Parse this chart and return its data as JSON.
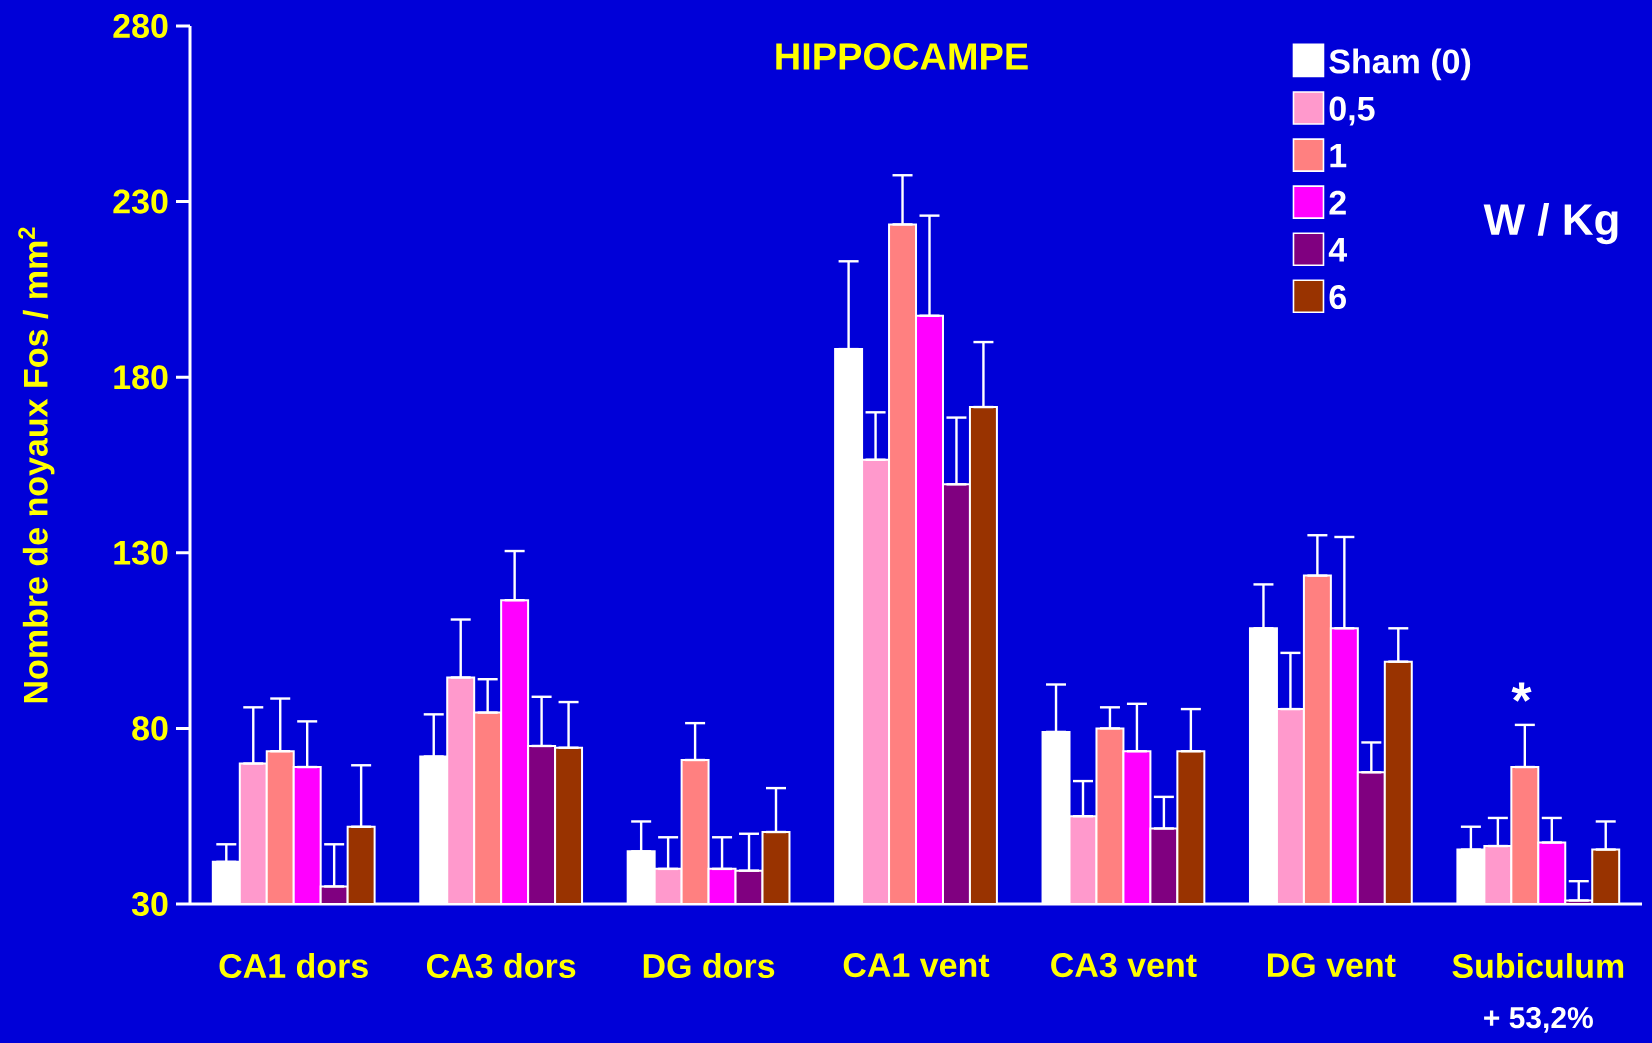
{
  "chart_data": {
    "type": "bar",
    "title": "HIPPOCAMPE",
    "ylabel": "Nombre de noyaux Fos / mm$^{2}$",
    "categories": [
      "CA1 dors",
      "CA3 dors",
      "DG dors",
      "CA1 vent",
      "CA3 vent",
      "DG vent",
      "Subiculum"
    ],
    "series": [
      {
        "name": "Sham (0)",
        "color": "#ffffff",
        "values": [
          42,
          72,
          45,
          188,
          79,
          108.5,
          45.5
        ],
        "errors": [
          [
            42,
            47
          ],
          [
            72,
            84
          ],
          [
            45,
            53.5
          ],
          [
            188,
            213
          ],
          [
            79,
            92.5
          ],
          [
            108.5,
            121
          ],
          [
            45.5,
            52
          ]
        ]
      },
      {
        "name": "0,5",
        "color": "#ff99cc",
        "values": [
          70,
          94.5,
          40,
          156.5,
          55,
          85.5,
          46.5
        ],
        "errors": [
          [
            70,
            86
          ],
          [
            94.5,
            111
          ],
          [
            40,
            49
          ],
          [
            156.5,
            170
          ],
          [
            55,
            65
          ],
          [
            85.5,
            101.5
          ],
          [
            46.5,
            54.5
          ]
        ]
      },
      {
        "name": "1",
        "color": "#ff8080",
        "values": [
          73.5,
          84.5,
          71,
          223.5,
          80,
          123.5,
          69
        ],
        "errors": [
          [
            73.5,
            88.5
          ],
          [
            84.5,
            94
          ],
          [
            71,
            81.5
          ],
          [
            223.5,
            237.5
          ],
          [
            80,
            86
          ],
          [
            123.5,
            135
          ],
          [
            69,
            81
          ]
        ]
      },
      {
        "name": "2",
        "color": "#ff00ff",
        "values": [
          69,
          116.5,
          40,
          197.5,
          73.5,
          108.5,
          47.5
        ],
        "errors": [
          [
            69,
            82
          ],
          [
            116.5,
            130.5
          ],
          [
            40,
            49
          ],
          [
            197.5,
            226
          ],
          [
            73.5,
            87
          ],
          [
            108.5,
            134.5
          ],
          [
            47.5,
            54.5
          ]
        ]
      },
      {
        "name": "4",
        "color": "#800080",
        "values": [
          35,
          75,
          39.5,
          149.5,
          51.5,
          67.5,
          31
        ],
        "errors": [
          [
            35,
            47
          ],
          [
            75,
            89
          ],
          [
            39.5,
            50
          ],
          [
            149.5,
            168.5
          ],
          [
            51.5,
            60.5
          ],
          [
            67.5,
            76
          ],
          [
            31,
            36.5
          ]
        ]
      },
      {
        "name": "6",
        "color": "#993300",
        "values": [
          52,
          74.5,
          50.5,
          171.5,
          73.5,
          99,
          45.5
        ],
        "errors": [
          [
            52,
            69.5
          ],
          [
            74.5,
            87.5
          ],
          [
            50.5,
            63
          ],
          [
            171.5,
            190
          ],
          [
            73.5,
            85.5
          ],
          [
            99,
            108.5
          ],
          [
            45.5,
            53.5
          ]
        ]
      }
    ],
    "ylim": [
      30,
      280
    ],
    "yticks": [
      30,
      80,
      130,
      180,
      230,
      280
    ],
    "legend": "top right",
    "annotations": [
      "W / Kg",
      "*",
      "+ 53,2%"
    ]
  }
}
